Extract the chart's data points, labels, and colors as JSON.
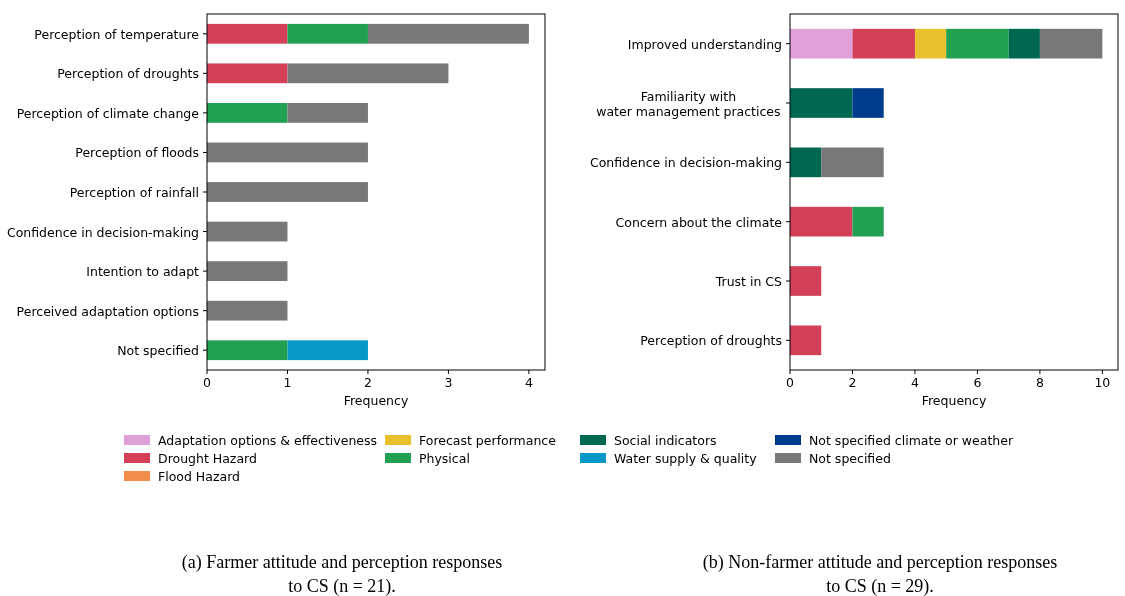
{
  "chart_data": [
    {
      "type": "bar",
      "orientation": "horizontal",
      "stacked": true,
      "xlabel": "Frequency",
      "xlim": [
        0,
        4.2
      ],
      "xticks": [
        0,
        1,
        2,
        3,
        4
      ],
      "grid": false,
      "legend": "bottom",
      "categories": [
        "Perception of temperature",
        "Perception of droughts",
        "Perception of climate change",
        "Perception of floods",
        "Perception of rainfall",
        "Confidence in decision-making",
        "Intention to adapt",
        "Perceived adaptation options",
        "Not specified"
      ],
      "series": [
        {
          "name": "Adaptation options & effectiveness",
          "color": "#e0a0d8",
          "values": [
            null,
            null,
            null,
            null,
            null,
            null,
            null,
            null,
            null
          ]
        },
        {
          "name": "Drought Hazard",
          "color": "#d44058",
          "values": [
            1,
            1,
            null,
            null,
            null,
            null,
            null,
            null,
            null
          ]
        },
        {
          "name": "Flood Hazard",
          "color": "#f28c4a",
          "values": [
            null,
            null,
            null,
            null,
            null,
            null,
            null,
            null,
            null
          ]
        },
        {
          "name": "Forecast performance",
          "color": "#e8c030",
          "values": [
            null,
            null,
            null,
            null,
            null,
            null,
            null,
            null,
            null
          ]
        },
        {
          "name": "Physical",
          "color": "#20a050",
          "values": [
            1,
            null,
            1,
            null,
            null,
            null,
            null,
            null,
            1
          ]
        },
        {
          "name": "Social indicators",
          "color": "#006850",
          "values": [
            null,
            null,
            null,
            null,
            null,
            null,
            null,
            null,
            null
          ]
        },
        {
          "name": "Water supply & quality",
          "color": "#0898c8",
          "values": [
            null,
            null,
            null,
            null,
            null,
            null,
            null,
            null,
            1
          ]
        },
        {
          "name": "Not specified climate or weather",
          "color": "#003c8c",
          "values": [
            null,
            null,
            null,
            null,
            null,
            null,
            null,
            null,
            null
          ]
        },
        {
          "name": "Not specified",
          "color": "#787878",
          "values": [
            2,
            2,
            1,
            2,
            2,
            1,
            1,
            1,
            null
          ]
        }
      ],
      "annotations": [
        "(a)  Farmer attitude and perception responses to CS (n = 21)."
      ]
    },
    {
      "type": "bar",
      "orientation": "horizontal",
      "stacked": true,
      "xlabel": "Frequency",
      "xlim": [
        0,
        10.5
      ],
      "xticks": [
        0,
        2,
        4,
        6,
        8,
        10
      ],
      "grid": false,
      "categories": [
        "Improved understanding",
        "Familiarity with\nwater management practices",
        "Confidence in decision-making",
        "Concern about the climate",
        "Trust in CS",
        "Perception of droughts"
      ],
      "series": [
        {
          "color": "#e0a0d8",
          "values": [
            2,
            null,
            null,
            null,
            null,
            null
          ]
        },
        {
          "color": "#d44058",
          "values": [
            2,
            null,
            null,
            2,
            1,
            1
          ]
        },
        {
          "color": "#e8c030",
          "values": [
            1,
            null,
            null,
            null,
            null,
            null
          ]
        },
        {
          "color": "#20a050",
          "values": [
            2,
            null,
            null,
            1,
            null,
            null
          ]
        },
        {
          "color": "#006850",
          "values": [
            1,
            2,
            1,
            null,
            null,
            null
          ]
        },
        {
          "color": "#003c8c",
          "values": [
            null,
            1,
            null,
            null,
            null,
            null
          ]
        },
        {
          "color": "#787878",
          "values": [
            2,
            null,
            2,
            null,
            null,
            null
          ]
        }
      ],
      "annotations": [
        "(b)  Non-farmer attitude and perception responses to CS (n = 29)."
      ]
    }
  ]
}
